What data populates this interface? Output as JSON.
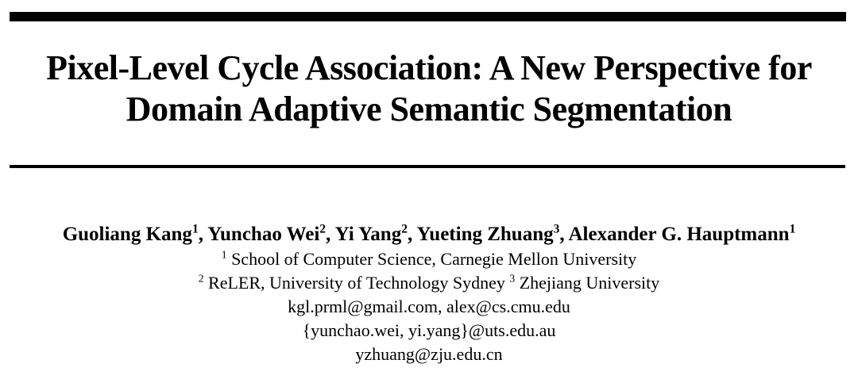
{
  "paper": {
    "title_lines": [
      "Pixel-Level Cycle Association: A New Perspective for",
      "Domain Adaptive Semantic Segmentation"
    ],
    "authors": [
      {
        "name": "Guoliang Kang",
        "sup": "1"
      },
      {
        "name": "Yunchao Wei",
        "sup": "2"
      },
      {
        "name": "Yi Yang",
        "sup": "2"
      },
      {
        "name": "Yueting Zhuang",
        "sup": "3"
      },
      {
        "name": "Alexander G. Hauptmann",
        "sup": "1"
      }
    ],
    "affiliation_lines": [
      [
        {
          "sup": "1",
          "text": "School of Computer Science, Carnegie Mellon University"
        }
      ],
      [
        {
          "sup": "2",
          "text": "ReLER, University of Technology Sydney"
        },
        {
          "sup": "3",
          "text": "Zhejiang University"
        }
      ]
    ],
    "email_lines": [
      "kgl.prml@gmail.com, alex@cs.cmu.edu",
      "{yunchao.wei, yi.yang}@uts.edu.au",
      "yzhuang@zju.edu.cn"
    ],
    "colors": {
      "background": "#ffffff",
      "text": "#000000",
      "rule": "#000000"
    }
  }
}
